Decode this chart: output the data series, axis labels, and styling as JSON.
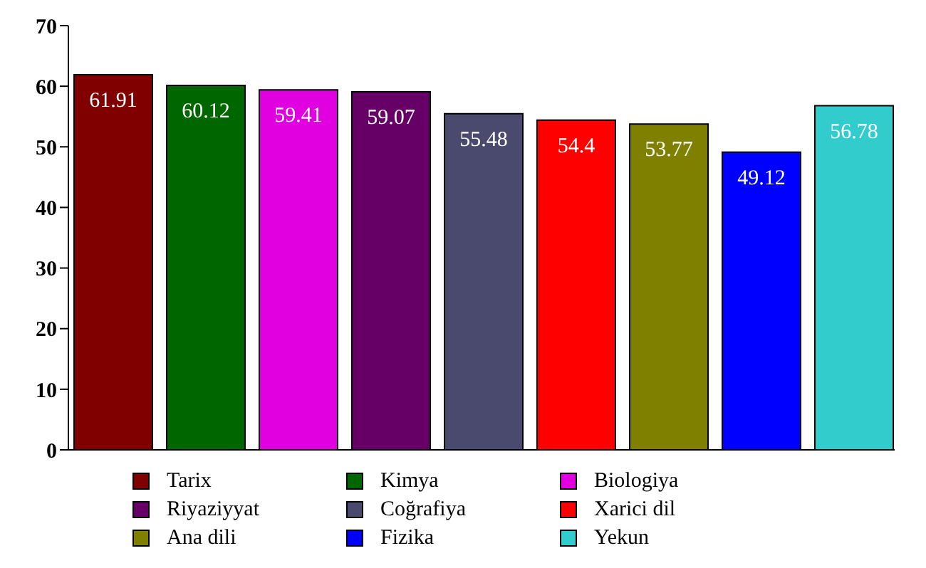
{
  "chart_data": {
    "type": "bar",
    "categories": [
      null
    ],
    "series": [
      {
        "name": "Tarix",
        "color": "#800000",
        "values": [
          61.91
        ]
      },
      {
        "name": "Kimya",
        "color": "#006600",
        "values": [
          60.12
        ]
      },
      {
        "name": "Biologiya",
        "color": "#e000e0",
        "values": [
          59.41
        ]
      },
      {
        "name": "Riyaziyyat",
        "color": "#660066",
        "values": [
          59.07
        ]
      },
      {
        "name": "Coğrafiya",
        "color": "#4a4a6e",
        "values": [
          55.48
        ]
      },
      {
        "name": "Xarici dil",
        "color": "#ff0000",
        "values": [
          54.4
        ]
      },
      {
        "name": "Ana dili",
        "color": "#808000",
        "values": [
          53.77
        ]
      },
      {
        "name": "Fizika",
        "color": "#0000ff",
        "values": [
          49.12
        ]
      },
      {
        "name": "Yekun",
        "color": "#33cccc",
        "values": [
          56.78
        ]
      }
    ],
    "ylim": [
      0,
      70
    ],
    "yticks": [
      0,
      10,
      20,
      30,
      40,
      50,
      60,
      70
    ],
    "grid": false,
    "data_labels": true,
    "legend": "bottom"
  }
}
